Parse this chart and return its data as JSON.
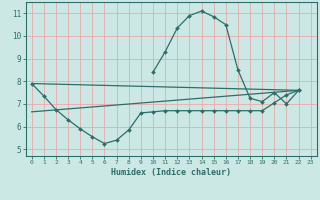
{
  "title": "",
  "xlabel": "Humidex (Indice chaleur)",
  "xlim": [
    -0.5,
    23.5
  ],
  "ylim": [
    4.7,
    11.5
  ],
  "xticks": [
    0,
    1,
    2,
    3,
    4,
    5,
    6,
    7,
    8,
    9,
    10,
    11,
    12,
    13,
    14,
    15,
    16,
    17,
    18,
    19,
    20,
    21,
    22,
    23
  ],
  "yticks": [
    5,
    6,
    7,
    8,
    9,
    10,
    11
  ],
  "background_color": "#cce8e5",
  "grid_color": "#e8aaaa",
  "line_color": "#2d6e68",
  "lines": [
    {
      "x": [
        0,
        1,
        2,
        3,
        4,
        5,
        6,
        7,
        8,
        9,
        10,
        11,
        12,
        13,
        14,
        15,
        16,
        17,
        18,
        19,
        20,
        21,
        22
      ],
      "y": [
        7.9,
        7.35,
        6.75,
        6.3,
        5.9,
        5.55,
        5.25,
        5.4,
        5.85,
        6.6,
        6.65,
        6.7,
        6.7,
        6.7,
        6.7,
        6.7,
        6.7,
        6.7,
        6.7,
        6.7,
        7.05,
        7.4,
        7.6
      ],
      "marker": true
    },
    {
      "x": [
        10,
        11,
        12,
        13,
        14,
        15,
        16,
        17,
        18,
        19,
        20,
        21,
        22
      ],
      "y": [
        8.4,
        9.3,
        10.35,
        10.9,
        11.1,
        10.85,
        10.5,
        8.5,
        7.25,
        7.1,
        7.5,
        7.0,
        7.6
      ],
      "marker": true
    },
    {
      "x": [
        0,
        22
      ],
      "y": [
        7.9,
        7.6
      ],
      "marker": false
    },
    {
      "x": [
        0,
        22
      ],
      "y": [
        6.65,
        7.6
      ],
      "marker": false
    }
  ]
}
